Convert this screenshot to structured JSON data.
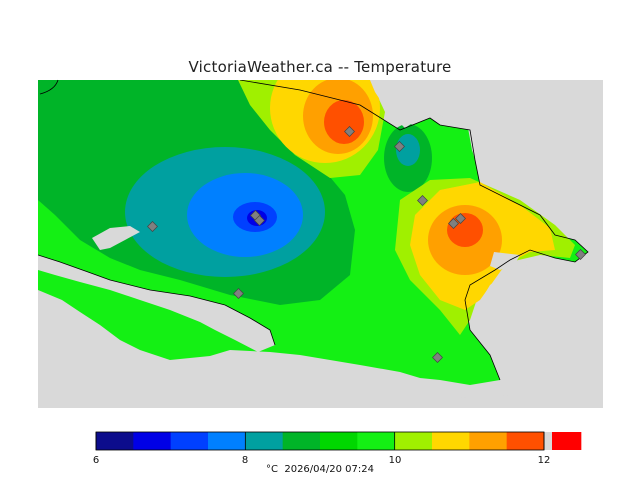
{
  "title": "VictoriaWeather.ca -- Temperature",
  "footer": {
    "unit": "°C",
    "timestamp": "2026/04/20 07:24"
  },
  "colorbar": {
    "min": 6,
    "max": 12,
    "tick_labels": [
      "6",
      "8",
      "10",
      "12"
    ],
    "tick_values": [
      6,
      8,
      10,
      12
    ],
    "colors": [
      "#0c0c8c",
      "#0000e6",
      "#0040ff",
      "#0080ff",
      "#00a0a0",
      "#00b428",
      "#00d700",
      "#14f014",
      "#a0f000",
      "#ffd700",
      "#ffa000",
      "#ff5000",
      "#ff0000"
    ]
  },
  "colors": {
    "land_bg": "#00d700",
    "water": "#d9d9d9",
    "station": "#808080"
  },
  "stations": [
    {
      "name": "station",
      "value": null
    },
    {
      "name": "station",
      "value": null
    },
    {
      "name": "station",
      "value": null
    },
    {
      "name": "station",
      "value": null
    },
    {
      "name": "station",
      "value": null
    },
    {
      "name": "station",
      "value": null
    },
    {
      "name": "station",
      "value": null
    },
    {
      "name": "station",
      "value": null
    },
    {
      "name": "station",
      "value": null
    },
    {
      "name": "station",
      "value": null
    },
    {
      "name": "station",
      "value": null
    }
  ]
}
